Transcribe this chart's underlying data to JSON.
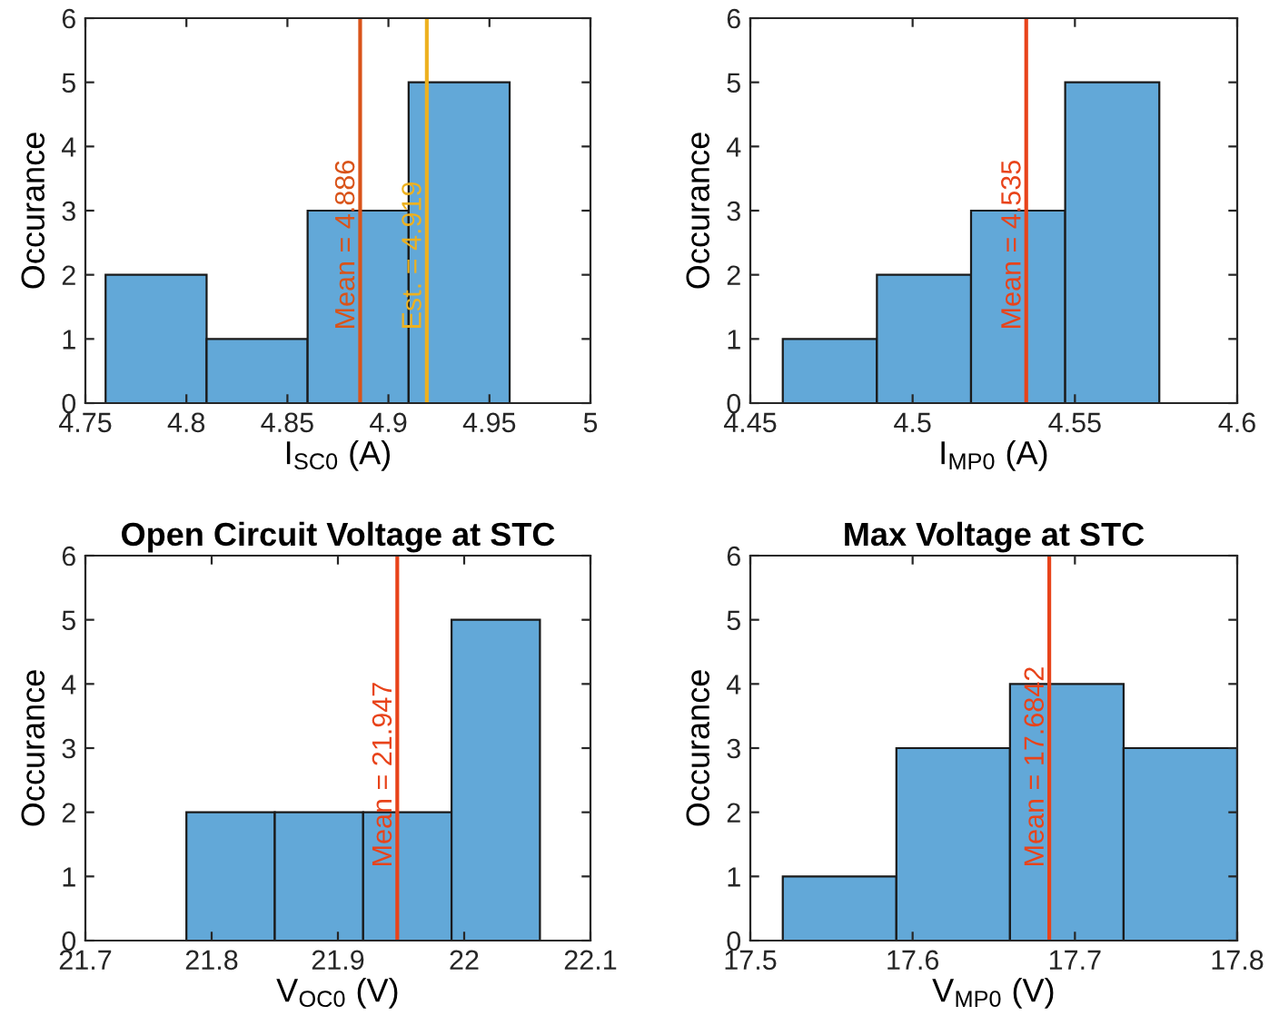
{
  "chart_data": [
    {
      "type": "histogram",
      "xlabel": "I$_{SC0}$ (A)",
      "ylabel": "Occurance",
      "bins": [
        4.76,
        4.81,
        4.86,
        4.91,
        4.96
      ],
      "values": [
        2,
        1,
        3,
        5
      ],
      "color": "#62a8d8",
      "xlim": [
        4.75,
        5
      ],
      "xticks": [
        4.75,
        4.8,
        4.85,
        4.9,
        4.95,
        5
      ],
      "ylim": [
        0,
        6
      ],
      "yticks": [
        0,
        1,
        2,
        3,
        4,
        5,
        6
      ],
      "grid": false,
      "ref_lines": [
        {
          "axis": "x",
          "value": 4.886,
          "label": "Mean = 4.886",
          "color": "#d95319"
        },
        {
          "axis": "x",
          "value": 4.919,
          "label": "Est. = 4.919",
          "color": "#edb120"
        }
      ]
    },
    {
      "type": "histogram",
      "xlabel": "I$_{MP0}$ (A)",
      "ylabel": "Occurance",
      "bins": [
        4.46,
        4.489,
        4.518,
        4.547,
        4.576
      ],
      "values": [
        1,
        2,
        3,
        5
      ],
      "color": "#62a8d8",
      "xlim": [
        4.45,
        4.6
      ],
      "xticks": [
        4.45,
        4.5,
        4.55,
        4.6
      ],
      "ylim": [
        0,
        6
      ],
      "yticks": [
        0,
        1,
        2,
        3,
        4,
        5,
        6
      ],
      "grid": false,
      "ref_lines": [
        {
          "axis": "x",
          "value": 4.535,
          "label": "Mean = 4.535",
          "color": "#e8431a"
        }
      ]
    },
    {
      "type": "histogram",
      "title": "Open Circuit Voltage at STC",
      "xlabel": "V$_{OC0}$ (V)",
      "ylabel": "Occurance",
      "bins": [
        21.78,
        21.85,
        21.92,
        21.99,
        22.06
      ],
      "values": [
        2,
        2,
        2,
        5
      ],
      "color": "#62a8d8",
      "xlim": [
        21.7,
        22.1
      ],
      "xticks": [
        21.7,
        21.8,
        21.9,
        22,
        22.1
      ],
      "ylim": [
        0,
        6
      ],
      "yticks": [
        0,
        1,
        2,
        3,
        4,
        5,
        6
      ],
      "grid": false,
      "ref_lines": [
        {
          "axis": "x",
          "value": 21.947,
          "label": "Mean = 21.947",
          "color": "#e8431a"
        }
      ]
    },
    {
      "type": "histogram",
      "title": "Max Voltage at STC",
      "xlabel": "V$_{MP0}$ (V)",
      "ylabel": "Occurance",
      "bins": [
        17.52,
        17.59,
        17.66,
        17.73,
        17.8
      ],
      "values": [
        1,
        3,
        4,
        3
      ],
      "color": "#62a8d8",
      "xlim": [
        17.5,
        17.8
      ],
      "xticks": [
        17.5,
        17.6,
        17.7,
        17.8
      ],
      "ylim": [
        0,
        6
      ],
      "yticks": [
        0,
        1,
        2,
        3,
        4,
        5,
        6
      ],
      "grid": false,
      "ref_lines": [
        {
          "axis": "x",
          "value": 17.6842,
          "label": "Mean = 17.6842",
          "color": "#e8431a"
        }
      ]
    }
  ]
}
